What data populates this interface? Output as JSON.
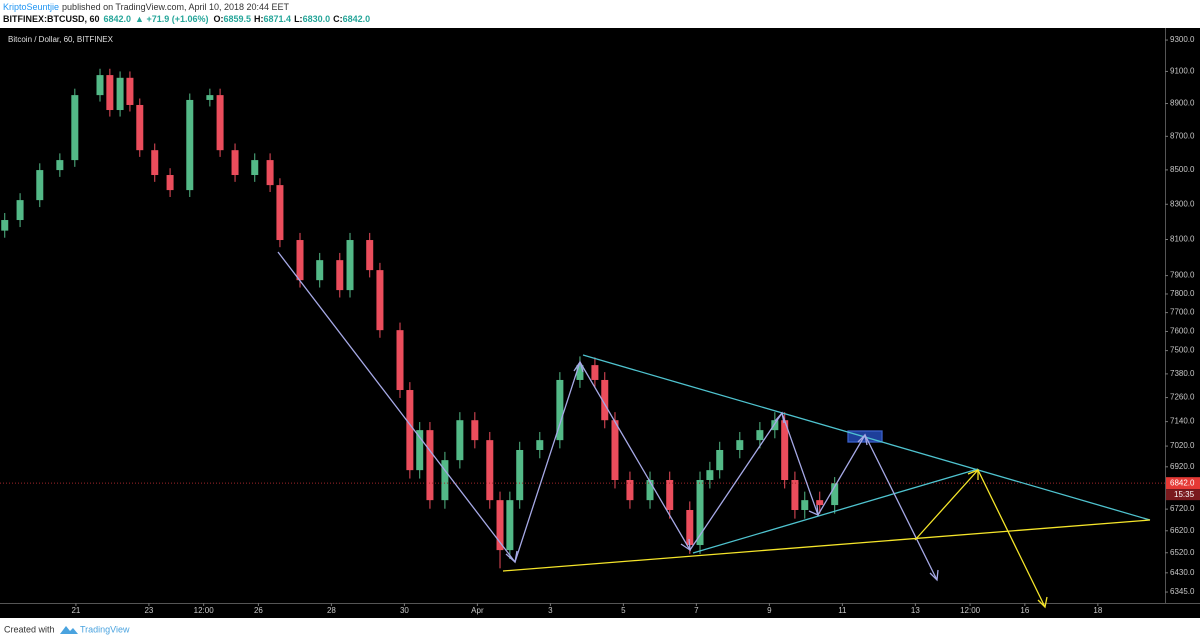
{
  "header": {
    "author": "KriptoSeuntjie",
    "published": "published on TradingView.com, April 10, 2018 20:44 EET",
    "symbol": "BITFINEX:BTCUSD, 60",
    "last": "6842.0",
    "change": "▲ +71.9 (+1.06%)",
    "quote": [
      {
        "label": "O:",
        "value": "6859.5"
      },
      {
        "label": "H:",
        "value": "6871.4"
      },
      {
        "label": "L:",
        "value": "6830.0"
      },
      {
        "label": "C:",
        "value": "6842.0"
      }
    ]
  },
  "chart_data": {
    "type": "candlestick",
    "title": "Bitcoin / Dollar, 60, BITFINEX",
    "log_scale": true,
    "grid": false,
    "up_color": "#53b987",
    "down_color": "#eb4d5c",
    "xlim": [
      18.92,
      50.84
    ],
    "ylim": [
      6297,
      9365
    ],
    "xticks": [
      {
        "value": 21,
        "label": "21"
      },
      {
        "value": 23,
        "label": "23"
      },
      {
        "value": 24.5,
        "label": "12:00"
      },
      {
        "value": 26,
        "label": "26"
      },
      {
        "value": 28,
        "label": "28"
      },
      {
        "value": 30,
        "label": "30"
      },
      {
        "value": 32,
        "label": "Apr"
      },
      {
        "value": 34,
        "label": "3"
      },
      {
        "value": 36,
        "label": "5"
      },
      {
        "value": 38,
        "label": "7"
      },
      {
        "value": 40,
        "label": "9"
      },
      {
        "value": 42,
        "label": "11"
      },
      {
        "value": 44,
        "label": "13"
      },
      {
        "value": 45.5,
        "label": "12:00"
      },
      {
        "value": 47,
        "label": "16"
      },
      {
        "value": 49,
        "label": "18"
      }
    ],
    "yticks": [
      {
        "value": 9300,
        "label": "9300.0"
      },
      {
        "value": 9100,
        "label": "9100.0"
      },
      {
        "value": 8900,
        "label": "8900.0"
      },
      {
        "value": 8700,
        "label": "8700.0"
      },
      {
        "value": 8500,
        "label": "8500.0"
      },
      {
        "value": 8300,
        "label": "8300.0"
      },
      {
        "value": 8100,
        "label": "8100.0"
      },
      {
        "value": 7900,
        "label": "7900.0"
      },
      {
        "value": 7800,
        "label": "7800.0"
      },
      {
        "value": 7700,
        "label": "7700.0"
      },
      {
        "value": 7600,
        "label": "7600.0"
      },
      {
        "value": 7500,
        "label": "7500.0"
      },
      {
        "value": 7380,
        "label": "7380.0"
      },
      {
        "value": 7260,
        "label": "7260.0"
      },
      {
        "value": 7140,
        "label": "7140.0"
      },
      {
        "value": 7020,
        "label": "7020.0"
      },
      {
        "value": 6920,
        "label": "6920.0"
      },
      {
        "value": 6720,
        "label": "6720.0"
      },
      {
        "value": 6620,
        "label": "6620.0"
      },
      {
        "value": 6520,
        "label": "6520.0"
      },
      {
        "value": 6430,
        "label": "6430.0"
      },
      {
        "value": 6345,
        "label": "6345.0"
      }
    ],
    "last_price": {
      "value": 6842,
      "label": "6842.0"
    },
    "countdown": "15:35",
    "x": [
      19.05,
      19.47,
      20.01,
      20.56,
      20.97,
      21.66,
      21.93,
      22.21,
      22.48,
      22.75,
      23.16,
      23.58,
      24.12,
      24.67,
      24.95,
      25.36,
      25.9,
      26.32,
      26.59,
      27.14,
      27.68,
      28.23,
      28.51,
      29.05,
      29.33,
      29.88,
      30.15,
      30.42,
      30.7,
      31.11,
      31.52,
      31.93,
      32.34,
      32.62,
      32.89,
      33.16,
      33.71,
      34.26,
      34.81,
      35.22,
      35.49,
      35.77,
      36.18,
      36.73,
      37.27,
      37.82,
      38.1,
      38.37,
      38.64,
      39.19,
      39.74,
      40.15,
      40.42,
      40.7,
      40.97,
      41.38,
      41.79
    ],
    "open": [
      8150,
      8210,
      8324,
      8499,
      8558,
      8952,
      9077,
      8860,
      9060,
      8891,
      8617,
      8470,
      8382,
      8922,
      8952,
      8617,
      8470,
      8558,
      8411,
      8097,
      7875,
      7985,
      7821,
      8097,
      7930,
      7607,
      7298,
      6904,
      7098,
      6762,
      6952,
      7147,
      7049,
      6762,
      6532,
      6762,
      7001,
      7049,
      7349,
      7425,
      7349,
      7147,
      6857,
      6762,
      6857,
      6716,
      6555,
      6857,
      6904,
      7001,
      7049,
      7098,
      7147,
      6857,
      6716,
      6762,
      6739
    ],
    "high": [
      8250,
      8364,
      8539,
      8598,
      8992,
      9117,
      9117,
      9100,
      9100,
      8931,
      8657,
      8510,
      8962,
      8992,
      8992,
      8657,
      8598,
      8598,
      8451,
      8137,
      8025,
      8025,
      8137,
      8137,
      7970,
      7647,
      7338,
      7138,
      7138,
      6992,
      7187,
      7187,
      7089,
      6802,
      6802,
      7041,
      7089,
      7389,
      7470,
      7465,
      7389,
      7187,
      6897,
      6897,
      6897,
      6756,
      6897,
      6944,
      7041,
      7089,
      7138,
      7187,
      7187,
      6897,
      6802,
      6802,
      6871
    ],
    "low": [
      8110,
      8170,
      8284,
      8459,
      8518,
      8912,
      8820,
      8820,
      8851,
      8577,
      8430,
      8342,
      8342,
      8882,
      8577,
      8430,
      8430,
      8371,
      8057,
      7835,
      7835,
      7781,
      7781,
      7890,
      7567,
      7258,
      6864,
      6864,
      6722,
      6722,
      6912,
      7009,
      6722,
      6450,
      6492,
      6722,
      6961,
      7009,
      7309,
      7309,
      7107,
      6817,
      6722,
      6722,
      6676,
      6515,
      6515,
      6817,
      6864,
      6961,
      7009,
      7058,
      6817,
      6676,
      6676,
      6699,
      6699
    ],
    "close": [
      8210,
      8324,
      8499,
      8558,
      8952,
      9077,
      8860,
      9060,
      8891,
      8617,
      8470,
      8382,
      8922,
      8952,
      8617,
      8470,
      8558,
      8411,
      8097,
      7875,
      7985,
      7821,
      8097,
      7930,
      7607,
      7298,
      6904,
      7098,
      6762,
      6952,
      7147,
      7049,
      6762,
      6532,
      6762,
      7001,
      7049,
      7349,
      7425,
      7349,
      7147,
      6857,
      6762,
      6857,
      6716,
      6555,
      6857,
      6904,
      7001,
      7049,
      7098,
      7147,
      6857,
      6716,
      6762,
      6739,
      6842
    ]
  },
  "footer": {
    "created": "Created with",
    "brand": "TradingView"
  }
}
